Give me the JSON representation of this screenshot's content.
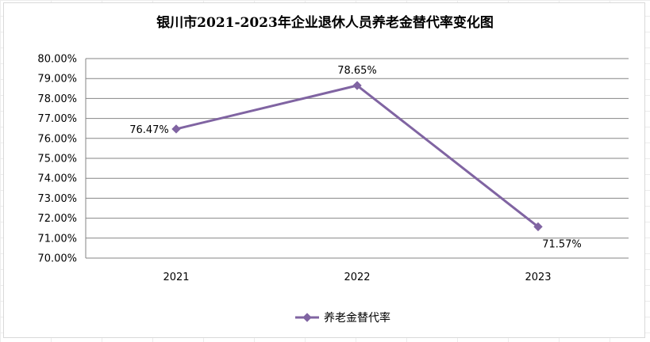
{
  "chart_data": {
    "type": "line",
    "title": "银川市2021-2023年企业退休人员养老金替代率变化图",
    "categories": [
      "2021",
      "2022",
      "2023"
    ],
    "series": [
      {
        "name": "养老金替代率",
        "values": [
          76.47,
          78.65,
          71.57
        ],
        "labels": [
          "76.47%",
          "78.65%",
          "71.57%"
        ],
        "color": "#8064a2"
      }
    ],
    "ylim": [
      70,
      80
    ],
    "yticks": [
      "70.00%",
      "71.00%",
      "72.00%",
      "73.00%",
      "74.00%",
      "75.00%",
      "76.00%",
      "77.00%",
      "78.00%",
      "79.00%",
      "80.00%"
    ],
    "grid": true,
    "legend_position": "bottom",
    "marker": "diamond"
  }
}
